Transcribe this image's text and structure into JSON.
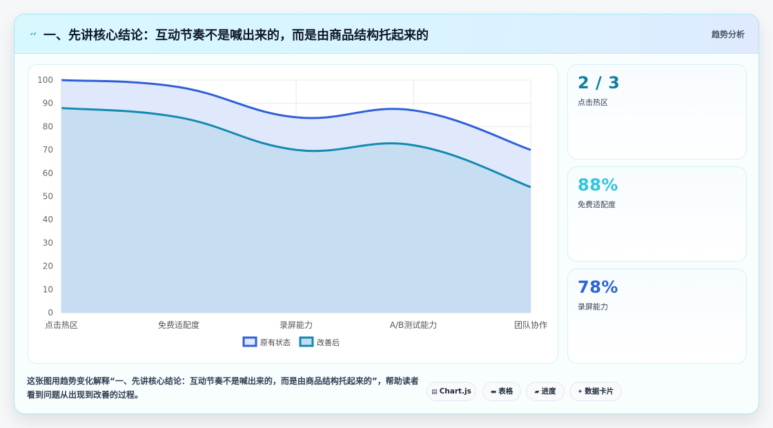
{
  "header": {
    "title": "一、先讲核心结论：互动节奏不是喊出来的，而是由商品结构托起来的",
    "tag": "趋势分析",
    "icon": "bolt-icon"
  },
  "chart_data": {
    "type": "area",
    "categories": [
      "点击热区",
      "免费适配度",
      "录屏能力",
      "A/B测试能力",
      "团队协作"
    ],
    "series": [
      {
        "name": "原有状态",
        "values": [
          100,
          97,
          84,
          87,
          70
        ],
        "color": "#2f5fd8",
        "fill": "#e0e9fb"
      },
      {
        "name": "改善后",
        "values": [
          88,
          84,
          70,
          72,
          54
        ],
        "color": "#1289b0",
        "fill": "#c4dcf1"
      }
    ],
    "ylim": [
      0,
      100
    ],
    "yticks": [
      0,
      10,
      20,
      30,
      40,
      50,
      60,
      70,
      80,
      90,
      100
    ],
    "grid": true,
    "legend_position": "bottom"
  },
  "stats": [
    {
      "value": "2 / 3",
      "label": "点击热区",
      "color": "#0e7fa0"
    },
    {
      "value": "88%",
      "label": "免费适配度",
      "color": "#2fc6dc"
    },
    {
      "value": "78%",
      "label": "录屏能力",
      "color": "#2a63d6"
    }
  ],
  "footer": {
    "description": "这张图用趋势变化解释“一、先讲核心结论：互动节奏不是喊出来的，而是由商品结构托起来的”，帮助读者看到问题从出现到改善的过程。",
    "chips": [
      {
        "icon": "▤",
        "label": "Chart.js"
      },
      {
        "icon": "▬",
        "label": "表格"
      },
      {
        "icon": "▰",
        "label": "进度"
      },
      {
        "icon": "✦",
        "label": "数据卡片"
      }
    ]
  }
}
